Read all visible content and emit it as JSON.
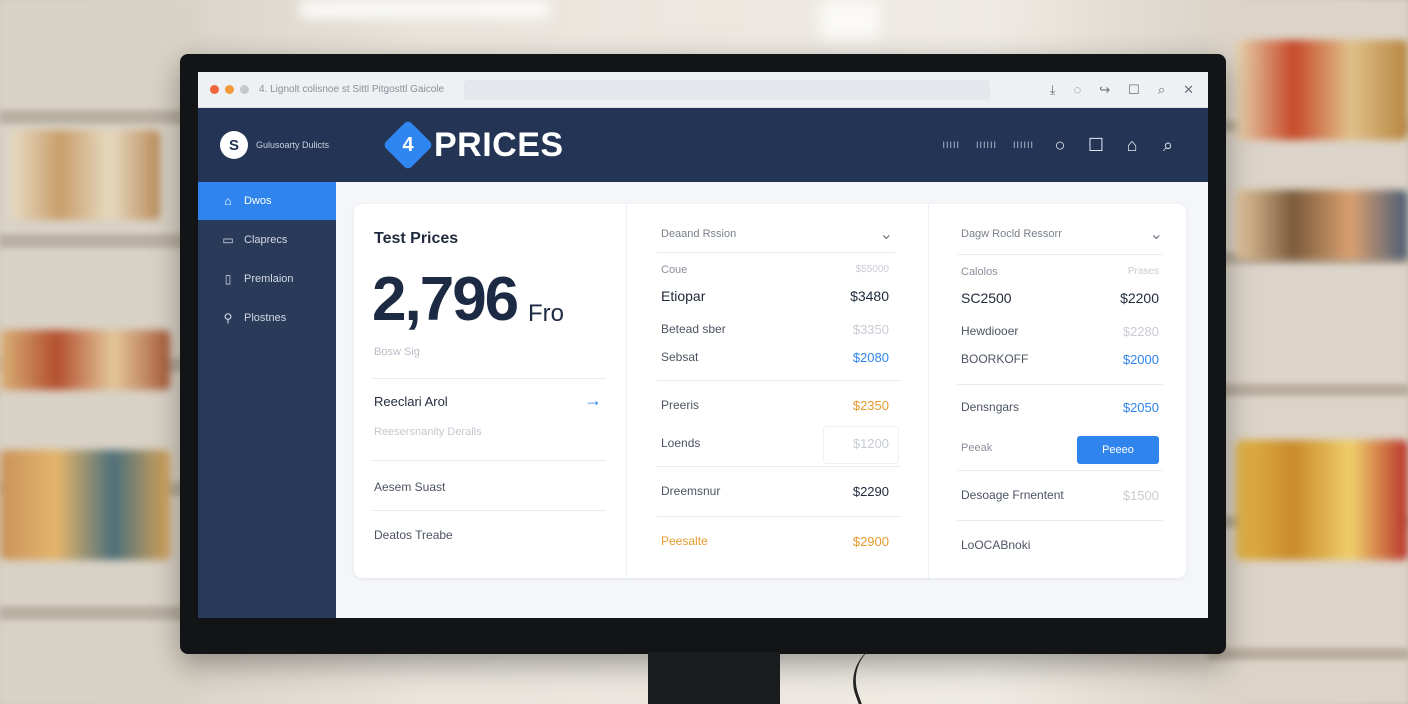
{
  "browser": {
    "tab_title": "4. Lignolt colisnoe st Sittl Pitgosttl Gaicole"
  },
  "header": {
    "brand_text": "Gulusoarty Dulicts",
    "logo_mark": "S",
    "logo_glyph": "4",
    "title": "PRICES",
    "nav_links": [
      "IIIII",
      "IIIIII",
      "IIIIII"
    ]
  },
  "sidebar": {
    "items": [
      {
        "label": "Dwos",
        "icon": "home-icon",
        "glyph": "⌂"
      },
      {
        "label": "Claprecs",
        "icon": "card-icon",
        "glyph": "▭"
      },
      {
        "label": "Premlaion",
        "icon": "document-icon",
        "glyph": "▯"
      },
      {
        "label": "Plostnes",
        "icon": "location-icon",
        "glyph": "⚲"
      }
    ]
  },
  "panel1": {
    "title": "Test Prices",
    "big_value": "2,796",
    "big_unit": "Fro",
    "sub": "Bosw Sig",
    "rows": [
      {
        "title": "Reeclari Arol",
        "sub": "Reesersnanity Deralls"
      },
      {
        "title": "Aesem Suast",
        "sub": ""
      },
      {
        "title": "Deatos Treabe",
        "sub": ""
      }
    ]
  },
  "panel2": {
    "dropdown": "Deaand Rssion",
    "header_k": "Coue",
    "header_v": "$55000",
    "rows": [
      {
        "k": "Etiopar",
        "v": "$3480"
      },
      {
        "k": "Betead sber",
        "v": "$3350"
      },
      {
        "k": "Sebsat",
        "v": "$2080"
      },
      {
        "k": "Preeris",
        "v": "$2350"
      },
      {
        "k": "Loends",
        "v": "$1200"
      },
      {
        "k": "Dreemsnur",
        "v": "$2290"
      },
      {
        "k": "Peesalte",
        "v": "$2900"
      }
    ]
  },
  "panel3": {
    "dropdown": "Dagw Rocld Ressorr",
    "header_k": "Calolos",
    "header_v": "Prases",
    "rows": [
      {
        "k": "SC2500",
        "v": "$2200"
      },
      {
        "k": "Hewdiooer",
        "v": "$2280"
      },
      {
        "k": "BOORKOFF",
        "v": "$2000"
      },
      {
        "k": "Densngars",
        "v": "$2050"
      },
      {
        "k": "Peeak",
        "v": ""
      },
      {
        "k": "Desoage Frnentent",
        "v": "$1500"
      },
      {
        "k": "LoOCABnoki",
        "v": ""
      }
    ],
    "button_label": "Peeeo"
  },
  "colors": {
    "accent": "#2f84ee",
    "header_bg": "#243454",
    "sidebar_bg": "#2a3b5a",
    "orange": "#e59a2e"
  }
}
